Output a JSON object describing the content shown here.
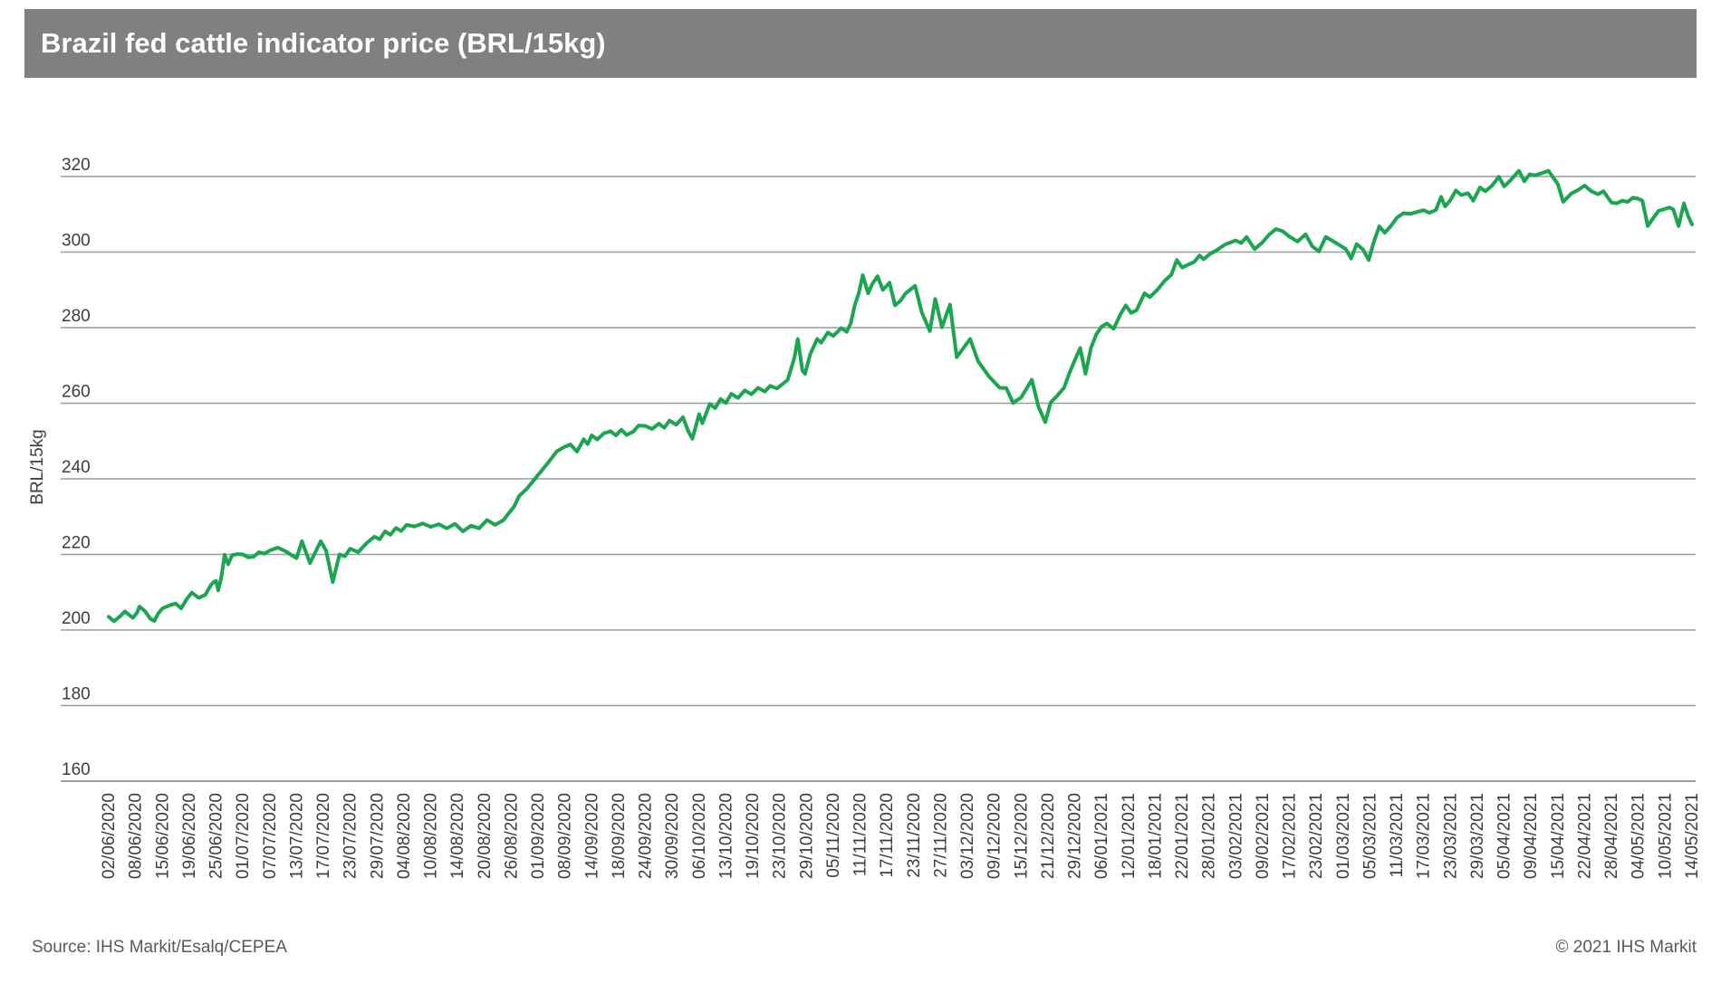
{
  "header": {
    "title": "Brazil fed cattle indicator price (BRL/15kg)",
    "background_color": "#808080",
    "title_color": "#ffffff"
  },
  "footer": {
    "source": "Source: IHS Markit/Esalq/CEPEA",
    "copyright": "© 2021 IHS Markit"
  },
  "chart_data": {
    "type": "line",
    "title": "Brazil fed cattle indicator price (BRL/15kg)",
    "xlabel": "",
    "ylabel": "BRL/15kg",
    "ylim": [
      160,
      320
    ],
    "y_ticks": [
      160,
      180,
      200,
      220,
      240,
      260,
      280,
      300,
      320
    ],
    "grid": "horizontal",
    "legend": "none",
    "line_color": "#19A64F",
    "grid_color": "#9c9c9c",
    "axis_text_color": "#3d3d3d",
    "categories": [
      "02/06/2020",
      "08/06/2020",
      "15/06/2020",
      "19/06/2020",
      "25/06/2020",
      "01/07/2020",
      "07/07/2020",
      "13/07/2020",
      "17/07/2020",
      "23/07/2020",
      "29/07/2020",
      "04/08/2020",
      "10/08/2020",
      "14/08/2020",
      "20/08/2020",
      "26/08/2020",
      "01/09/2020",
      "08/09/2020",
      "14/09/2020",
      "18/09/2020",
      "24/09/2020",
      "30/09/2020",
      "06/10/2020",
      "13/10/2020",
      "19/10/2020",
      "23/10/2020",
      "29/10/2020",
      "05/11/2020",
      "11/11/2020",
      "17/11/2020",
      "23/11/2020",
      "27/11/2020",
      "03/12/2020",
      "09/12/2020",
      "15/12/2020",
      "21/12/2020",
      "29/12/2020",
      "06/01/2021",
      "12/01/2021",
      "18/01/2021",
      "22/01/2021",
      "28/01/2021",
      "03/02/2021",
      "09/02/2021",
      "17/02/2021",
      "23/02/2021",
      "01/03/2021",
      "05/03/2021",
      "11/03/2021",
      "17/03/2021",
      "23/03/2021",
      "29/03/2021",
      "05/04/2021",
      "09/04/2021",
      "15/04/2021",
      "22/04/2021",
      "28/04/2021",
      "04/05/2021",
      "10/05/2021",
      "14/05/2021"
    ],
    "values": [
      203.5,
      204,
      205.5,
      209.5,
      213,
      220,
      221,
      219,
      221,
      221.5,
      225.5,
      227.8,
      227.3,
      227,
      228.5,
      234,
      241,
      248.5,
      251.5,
      253,
      254,
      255.5,
      257,
      260.5,
      263.5,
      265.5,
      274,
      278,
      293,
      291,
      290,
      282,
      276.5,
      265.5,
      261.5,
      256,
      271.5,
      280.5,
      284,
      290,
      296,
      299.5,
      303,
      302.5,
      304,
      301,
      300.5,
      300,
      309,
      311,
      314,
      317,
      318.5,
      320.5,
      318,
      317.5,
      313,
      314,
      312,
      307.5
    ],
    "samples": [
      [
        0,
        203.5
      ],
      [
        0.2,
        202.3
      ],
      [
        0.45,
        203.8
      ],
      [
        0.6,
        204.9
      ],
      [
        0.9,
        203.2
      ],
      [
        1.05,
        204.5
      ],
      [
        1.15,
        206.2
      ],
      [
        1.35,
        205
      ],
      [
        1.55,
        203
      ],
      [
        1.7,
        202.4
      ],
      [
        1.85,
        204.4
      ],
      [
        2,
        205.7
      ],
      [
        2.3,
        206.6
      ],
      [
        2.5,
        207
      ],
      [
        2.7,
        205.7
      ],
      [
        2.9,
        208.1
      ],
      [
        3.1,
        209.9
      ],
      [
        3.35,
        208.5
      ],
      [
        3.6,
        209.3
      ],
      [
        3.8,
        211.8
      ],
      [
        3.9,
        212.6
      ],
      [
        4,
        213
      ],
      [
        4.08,
        210.5
      ],
      [
        4.2,
        214
      ],
      [
        4.32,
        219.9
      ],
      [
        4.45,
        217.4
      ],
      [
        4.6,
        219.8
      ],
      [
        4.8,
        220.1
      ],
      [
        5,
        220
      ],
      [
        5.2,
        219.2
      ],
      [
        5.4,
        219.4
      ],
      [
        5.6,
        220.6
      ],
      [
        5.8,
        220.2
      ],
      [
        6,
        221
      ],
      [
        6.3,
        221.8
      ],
      [
        6.6,
        220.8
      ],
      [
        7,
        219
      ],
      [
        7.2,
        223.5
      ],
      [
        7.5,
        217.7
      ],
      [
        7.9,
        223.5
      ],
      [
        8.1,
        221
      ],
      [
        8.35,
        212.7
      ],
      [
        8.6,
        220
      ],
      [
        8.8,
        219.5
      ],
      [
        9,
        221.5
      ],
      [
        9.3,
        220.6
      ],
      [
        9.6,
        222.9
      ],
      [
        9.9,
        224.7
      ],
      [
        10.1,
        224
      ],
      [
        10.3,
        226.1
      ],
      [
        10.5,
        225.2
      ],
      [
        10.7,
        227
      ],
      [
        10.9,
        226.2
      ],
      [
        11.1,
        227.8
      ],
      [
        11.4,
        227.4
      ],
      [
        11.7,
        228.2
      ],
      [
        12,
        227.3
      ],
      [
        12.3,
        228
      ],
      [
        12.6,
        226.9
      ],
      [
        12.9,
        228.1
      ],
      [
        13.2,
        226.1
      ],
      [
        13.5,
        227.6
      ],
      [
        13.8,
        226.9
      ],
      [
        14.1,
        229.1
      ],
      [
        14.4,
        227.8
      ],
      [
        14.7,
        229
      ],
      [
        15.1,
        232.6
      ],
      [
        15.3,
        235.5
      ],
      [
        15.6,
        237.5
      ],
      [
        16,
        241
      ],
      [
        16.4,
        244.5
      ],
      [
        16.7,
        247.3
      ],
      [
        17,
        248.5
      ],
      [
        17.2,
        249.1
      ],
      [
        17.45,
        247.2
      ],
      [
        17.7,
        250.5
      ],
      [
        17.85,
        249.2
      ],
      [
        18,
        251.5
      ],
      [
        18.2,
        250.4
      ],
      [
        18.45,
        252
      ],
      [
        18.7,
        252.6
      ],
      [
        18.9,
        251.5
      ],
      [
        19.1,
        253
      ],
      [
        19.3,
        251.6
      ],
      [
        19.55,
        252.5
      ],
      [
        19.75,
        254.1
      ],
      [
        20,
        254
      ],
      [
        20.25,
        253.2
      ],
      [
        20.5,
        254.6
      ],
      [
        20.7,
        253.5
      ],
      [
        20.9,
        255.4
      ],
      [
        21.15,
        254.3
      ],
      [
        21.4,
        256.3
      ],
      [
        21.6,
        252.6
      ],
      [
        21.75,
        250.6
      ],
      [
        22,
        257.1
      ],
      [
        22.12,
        254.7
      ],
      [
        22.4,
        259.8
      ],
      [
        22.6,
        258.7
      ],
      [
        22.8,
        261.1
      ],
      [
        23,
        260.1
      ],
      [
        23.2,
        262.5
      ],
      [
        23.45,
        261.4
      ],
      [
        23.7,
        263.4
      ],
      [
        23.95,
        262.4
      ],
      [
        24.2,
        264.1
      ],
      [
        24.45,
        263.1
      ],
      [
        24.65,
        264.6
      ],
      [
        24.9,
        263.9
      ],
      [
        25.1,
        265
      ],
      [
        25.3,
        266.2
      ],
      [
        25.55,
        272
      ],
      [
        25.68,
        277
      ],
      [
        25.85,
        268.6
      ],
      [
        25.95,
        267.8
      ],
      [
        26.15,
        273.1
      ],
      [
        26.4,
        277
      ],
      [
        26.55,
        276
      ],
      [
        26.8,
        278.7
      ],
      [
        27,
        277.8
      ],
      [
        27.3,
        279.9
      ],
      [
        27.5,
        278.9
      ],
      [
        27.65,
        281.1
      ],
      [
        27.8,
        285.9
      ],
      [
        27.95,
        289.1
      ],
      [
        28.1,
        293.9
      ],
      [
        28.3,
        289.1
      ],
      [
        28.45,
        291.5
      ],
      [
        28.65,
        293.6
      ],
      [
        28.85,
        290
      ],
      [
        29.1,
        291.9
      ],
      [
        29.3,
        285.9
      ],
      [
        29.5,
        287.1
      ],
      [
        29.7,
        289.1
      ],
      [
        30.05,
        291.1
      ],
      [
        30.3,
        284
      ],
      [
        30.6,
        279.1
      ],
      [
        30.8,
        287.6
      ],
      [
        31.05,
        280.1
      ],
      [
        31.35,
        286.1
      ],
      [
        31.6,
        272.2
      ],
      [
        32.1,
        277
      ],
      [
        32.4,
        271.1
      ],
      [
        32.8,
        267.1
      ],
      [
        33.2,
        264.1
      ],
      [
        33.45,
        264
      ],
      [
        33.7,
        260.1
      ],
      [
        34,
        261.5
      ],
      [
        34.4,
        266.2
      ],
      [
        34.65,
        259
      ],
      [
        34.9,
        255
      ],
      [
        35.1,
        260.2
      ],
      [
        35.35,
        262
      ],
      [
        35.6,
        264.1
      ],
      [
        35.8,
        268
      ],
      [
        36,
        271.4
      ],
      [
        36.2,
        274.6
      ],
      [
        36.4,
        267.8
      ],
      [
        36.6,
        274.6
      ],
      [
        36.8,
        278.2
      ],
      [
        37,
        280.3
      ],
      [
        37.2,
        281.1
      ],
      [
        37.45,
        279.7
      ],
      [
        37.7,
        283.5
      ],
      [
        37.9,
        285.9
      ],
      [
        38.1,
        283.9
      ],
      [
        38.3,
        284.6
      ],
      [
        38.6,
        289.1
      ],
      [
        38.8,
        288.1
      ],
      [
        39.1,
        290.2
      ],
      [
        39.35,
        292.4
      ],
      [
        39.6,
        294
      ],
      [
        39.8,
        297.9
      ],
      [
        40,
        295.9
      ],
      [
        40.2,
        296.6
      ],
      [
        40.45,
        297.4
      ],
      [
        40.65,
        299.1
      ],
      [
        40.8,
        298.1
      ],
      [
        41.05,
        299.6
      ],
      [
        41.25,
        300.3
      ],
      [
        41.6,
        302
      ],
      [
        42,
        303.1
      ],
      [
        42.2,
        302.4
      ],
      [
        42.4,
        304
      ],
      [
        42.7,
        300.8
      ],
      [
        43,
        302.6
      ],
      [
        43.25,
        304.7
      ],
      [
        43.5,
        306.1
      ],
      [
        43.75,
        305.5
      ],
      [
        44,
        304.1
      ],
      [
        44.3,
        302.8
      ],
      [
        44.6,
        304.7
      ],
      [
        44.85,
        301.5
      ],
      [
        45.1,
        300.2
      ],
      [
        45.35,
        304
      ],
      [
        45.6,
        303
      ],
      [
        45.85,
        301.9
      ],
      [
        46.1,
        300.8
      ],
      [
        46.3,
        298.3
      ],
      [
        46.5,
        302.1
      ],
      [
        46.75,
        300.6
      ],
      [
        46.95,
        297.9
      ],
      [
        47.15,
        302.8
      ],
      [
        47.35,
        306.8
      ],
      [
        47.55,
        305.1
      ],
      [
        47.8,
        307.1
      ],
      [
        48,
        309.1
      ],
      [
        48.25,
        310.3
      ],
      [
        48.5,
        310.1
      ],
      [
        48.75,
        310.6
      ],
      [
        49,
        311.1
      ],
      [
        49.2,
        310.4
      ],
      [
        49.45,
        311.1
      ],
      [
        49.65,
        314.6
      ],
      [
        49.8,
        312.1
      ],
      [
        50,
        313.8
      ],
      [
        50.2,
        316.3
      ],
      [
        50.4,
        315.1
      ],
      [
        50.65,
        315.6
      ],
      [
        50.85,
        313.6
      ],
      [
        51.1,
        317.1
      ],
      [
        51.3,
        316.1
      ],
      [
        51.55,
        317.6
      ],
      [
        51.8,
        319.9
      ],
      [
        52,
        317.4
      ],
      [
        52.25,
        319.1
      ],
      [
        52.55,
        321.5
      ],
      [
        52.75,
        318.7
      ],
      [
        52.95,
        320.6
      ],
      [
        53.15,
        320.3
      ],
      [
        53.45,
        321
      ],
      [
        53.65,
        321.5
      ],
      [
        54,
        318
      ],
      [
        54.2,
        313.3
      ],
      [
        54.5,
        315.5
      ],
      [
        54.75,
        316.4
      ],
      [
        55,
        317.6
      ],
      [
        55.25,
        316.1
      ],
      [
        55.5,
        315.3
      ],
      [
        55.7,
        316.1
      ],
      [
        56,
        313.1
      ],
      [
        56.2,
        312.9
      ],
      [
        56.4,
        313.6
      ],
      [
        56.6,
        313.3
      ],
      [
        56.8,
        314.4
      ],
      [
        57,
        314.1
      ],
      [
        57.15,
        313.6
      ],
      [
        57.35,
        306.9
      ],
      [
        57.55,
        308.9
      ],
      [
        57.75,
        310.9
      ],
      [
        57.95,
        311.3
      ],
      [
        58.15,
        311.8
      ],
      [
        58.3,
        311.3
      ],
      [
        58.5,
        306.9
      ],
      [
        58.7,
        312.9
      ],
      [
        58.85,
        309.6
      ],
      [
        59,
        307.3
      ]
    ]
  }
}
